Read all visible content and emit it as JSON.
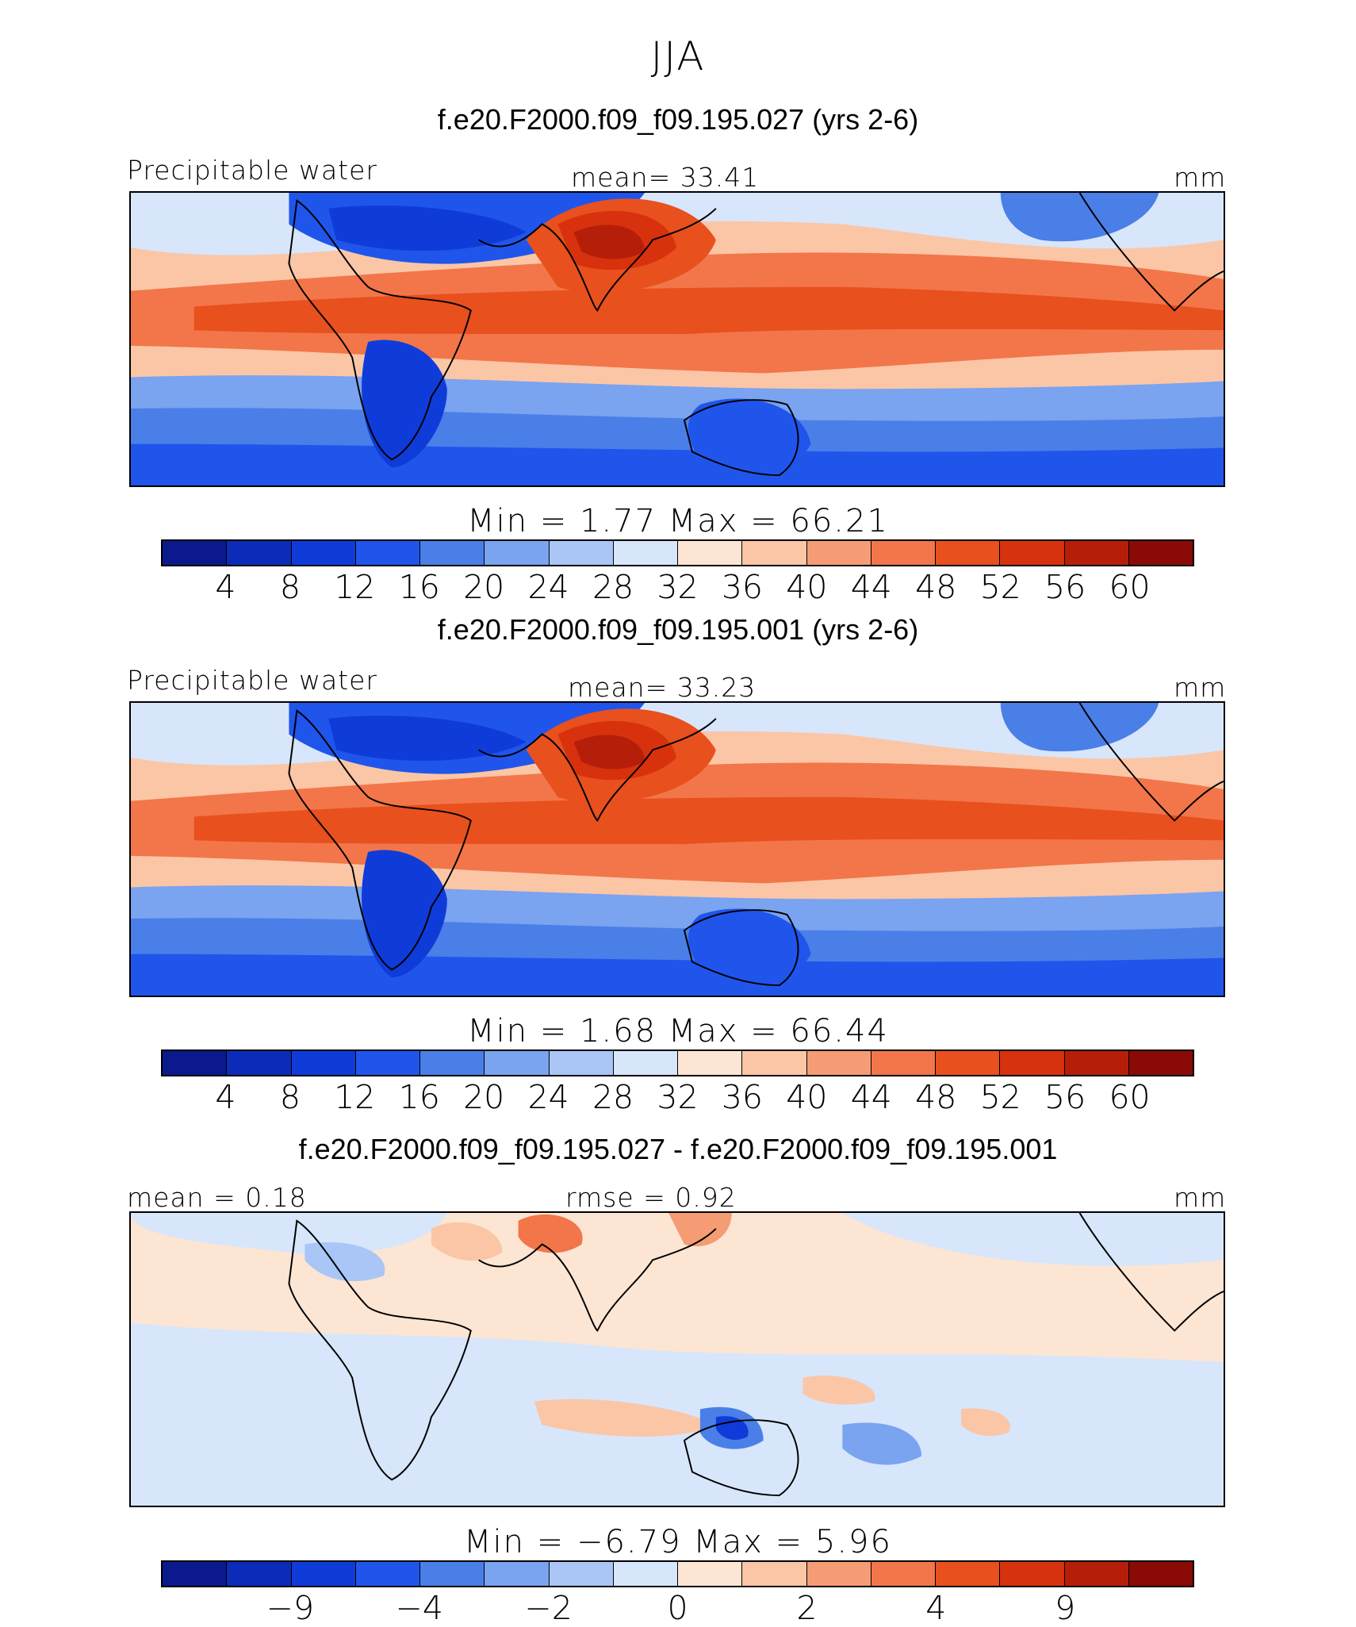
{
  "season": "JJA",
  "colors": {
    "abs": [
      "#0a1a8c",
      "#0b2cb8",
      "#0f3cd9",
      "#2055ec",
      "#4a7fe8",
      "#7aa3f0",
      "#a9c6f6",
      "#d7e6fb",
      "#fde5d3",
      "#fbc6a6",
      "#f59c74",
      "#f2764a",
      "#e8501e",
      "#d7320d",
      "#b51f0a",
      "#8a0b05"
    ],
    "diff": [
      "#0a1a8c",
      "#0b2cb8",
      "#0f3cd9",
      "#2055ec",
      "#4a7fe8",
      "#7aa3f0",
      "#a9c6f6",
      "#d7e6fb",
      "#fde5d3",
      "#fbc6a6",
      "#f59c74",
      "#f2764a",
      "#e8501e",
      "#d7320d",
      "#b51f0a",
      "#8a0b05"
    ]
  },
  "panels": [
    {
      "title": "f.e20.F2000.f09_f09.195.027 (yrs 2-6)",
      "left_label": "Precipitable water",
      "center_label": "mean=   33.41",
      "right_label": "mm",
      "minmax": "Min =    1.77  Max =   66.21",
      "ticks": [
        "4",
        "8",
        "12",
        "16",
        "20",
        "24",
        "28",
        "32",
        "36",
        "40",
        "44",
        "48",
        "52",
        "56",
        "60"
      ]
    },
    {
      "title": "f.e20.F2000.f09_f09.195.001 (yrs 2-6)",
      "left_label": "Precipitable water",
      "center_label": "mean=   33.23",
      "right_label": "mm",
      "minmax": "Min =    1.68  Max =   66.44",
      "ticks": [
        "4",
        "8",
        "12",
        "16",
        "20",
        "24",
        "28",
        "32",
        "36",
        "40",
        "44",
        "48",
        "52",
        "56",
        "60"
      ]
    },
    {
      "title": "f.e20.F2000.f09_f09.195.027 - f.e20.F2000.f09_f09.195.001",
      "left_label": "mean =   0.18",
      "center_label": "rmse =    0.92",
      "right_label": "mm",
      "minmax": "Min =   −6.79  Max =     5.96",
      "ticks": [
        "−9",
        "−4",
        "−2",
        "0",
        "2",
        "4",
        "9"
      ]
    }
  ],
  "chart_data": [
    {
      "type": "heatmap",
      "title": "f.e20.F2000.f09_f09.195.027 (yrs 2-6)",
      "variable": "Precipitable water",
      "units": "mm",
      "mean": 33.41,
      "min": 1.77,
      "max": 66.21,
      "contour_levels": [
        4,
        8,
        12,
        16,
        20,
        24,
        28,
        32,
        36,
        40,
        44,
        48,
        52,
        56,
        60
      ]
    },
    {
      "type": "heatmap",
      "title": "f.e20.F2000.f09_f09.195.001 (yrs 2-6)",
      "variable": "Precipitable water",
      "units": "mm",
      "mean": 33.23,
      "min": 1.68,
      "max": 66.44,
      "contour_levels": [
        4,
        8,
        12,
        16,
        20,
        24,
        28,
        32,
        36,
        40,
        44,
        48,
        52,
        56,
        60
      ]
    },
    {
      "type": "heatmap",
      "title": "f.e20.F2000.f09_f09.195.027 - f.e20.F2000.f09_f09.195.001",
      "units": "mm",
      "mean": 0.18,
      "rmse": 0.92,
      "min": -6.79,
      "max": 5.96,
      "contour_levels": [
        -9,
        -4,
        -2,
        0,
        2,
        4,
        9
      ]
    }
  ]
}
